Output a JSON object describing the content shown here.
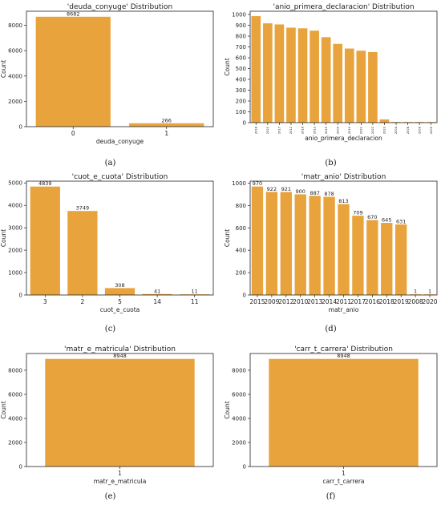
{
  "figure": {
    "captions": [
      "(a)",
      "(b)",
      "(c)",
      "(d)",
      "(e)",
      "(f)"
    ],
    "bar_color": "#E8A33D"
  },
  "chart_data": [
    {
      "type": "bar",
      "title": "'deuda_conyuge' Distribution",
      "xlabel": "deuda_conyuge",
      "ylabel": "Count",
      "categories": [
        "0",
        "1"
      ],
      "values": [
        8682,
        266
      ],
      "value_labels": [
        "8682",
        "266"
      ],
      "yticks": [
        0,
        2000,
        4000,
        6000,
        8000
      ],
      "ylim": [
        0,
        9116
      ],
      "grid": false
    },
    {
      "type": "bar",
      "title": "'anio_primera_declaracion' Distribution",
      "xlabel": "anio_primera_declaracion",
      "ylabel": "Count",
      "categories": [
        "2018",
        "2020",
        "2017",
        "2012",
        "2016",
        "2013",
        "2019",
        "2009",
        "2010",
        "2021",
        "2022",
        "2023",
        "2004",
        "2008",
        "2006",
        "2005"
      ],
      "values": [
        985,
        918,
        908,
        878,
        872,
        850,
        790,
        728,
        685,
        665,
        652,
        30,
        1,
        1,
        1,
        1
      ],
      "value_labels": [],
      "yticks": [
        0,
        100,
        200,
        300,
        400,
        500,
        600,
        700,
        800,
        900,
        1000
      ],
      "ylim": [
        0,
        1030
      ],
      "grid": false
    },
    {
      "type": "bar",
      "title": "'cuot_e_cuota' Distribution",
      "xlabel": "cuot_e_cuota",
      "ylabel": "Count",
      "categories": [
        "3",
        "2",
        "5",
        "14",
        "11"
      ],
      "values": [
        4839,
        3749,
        308,
        41,
        11
      ],
      "value_labels": [
        "4839",
        "3749",
        "308",
        "41",
        "11"
      ],
      "yticks": [
        0,
        1000,
        2000,
        3000,
        4000,
        5000
      ],
      "ylim": [
        0,
        5080
      ],
      "grid": false
    },
    {
      "type": "bar",
      "title": "'matr_anio' Distribution",
      "xlabel": "matr_anio",
      "ylabel": "Count",
      "categories": [
        "2015",
        "2009",
        "2012",
        "2010",
        "2013",
        "2014",
        "2011",
        "2017",
        "2016",
        "2018",
        "2019",
        "2008",
        "2020"
      ],
      "values": [
        970,
        922,
        921,
        900,
        887,
        878,
        813,
        709,
        670,
        645,
        631,
        1,
        1
      ],
      "value_labels": [
        "970",
        "922",
        "921",
        "900",
        "887",
        "878",
        "813",
        "709",
        "670",
        "645",
        "631",
        "1",
        "1"
      ],
      "yticks": [
        0,
        200,
        400,
        600,
        800,
        1000
      ],
      "ylim": [
        0,
        1018
      ],
      "grid": false
    },
    {
      "type": "bar",
      "title": "'matr_e_matricula' Distribution",
      "xlabel": "matr_e_matricula",
      "ylabel": "Count",
      "categories": [
        "1"
      ],
      "values": [
        8948
      ],
      "value_labels": [
        "8948"
      ],
      "yticks": [
        0,
        2000,
        4000,
        6000,
        8000
      ],
      "ylim": [
        0,
        9395
      ],
      "grid": false
    },
    {
      "type": "bar",
      "title": "'carr_t_carrera' Distribution",
      "xlabel": "carr_t_carrera",
      "ylabel": "Count",
      "categories": [
        "1"
      ],
      "values": [
        8948
      ],
      "value_labels": [
        "8948"
      ],
      "yticks": [
        0,
        2000,
        4000,
        6000,
        8000
      ],
      "ylim": [
        0,
        9395
      ],
      "grid": false
    }
  ]
}
